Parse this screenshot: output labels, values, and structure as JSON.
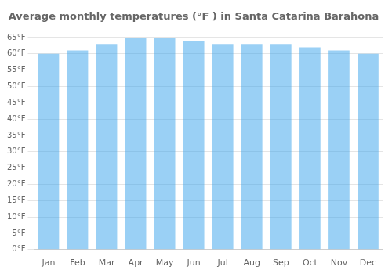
{
  "chart_data": {
    "type": "bar",
    "title": "Average monthly temperatures (°F ) in Santa Catarina Barahona",
    "categories": [
      "Jan",
      "Feb",
      "Mar",
      "Apr",
      "May",
      "Jun",
      "Jul",
      "Aug",
      "Sep",
      "Oct",
      "Nov",
      "Dec"
    ],
    "values": [
      60,
      61,
      63,
      65,
      65,
      64,
      63,
      63,
      63,
      62,
      61,
      60
    ],
    "ylim": [
      0,
      67
    ],
    "yticks": [
      {
        "value": 0,
        "label": "0°F"
      },
      {
        "value": 5,
        "label": "5°F"
      },
      {
        "value": 10,
        "label": "10°F"
      },
      {
        "value": 15,
        "label": "15°F"
      },
      {
        "value": 20,
        "label": "20°F"
      },
      {
        "value": 25,
        "label": "25°F"
      },
      {
        "value": 30,
        "label": "30°F"
      },
      {
        "value": 35,
        "label": "35°F"
      },
      {
        "value": 40,
        "label": "40°F"
      },
      {
        "value": 45,
        "label": "45°F"
      },
      {
        "value": 50,
        "label": "50°F"
      },
      {
        "value": 55,
        "label": "55°F"
      },
      {
        "value": 60,
        "label": "60°F"
      },
      {
        "value": 65,
        "label": "65°F"
      }
    ],
    "grid": true
  }
}
